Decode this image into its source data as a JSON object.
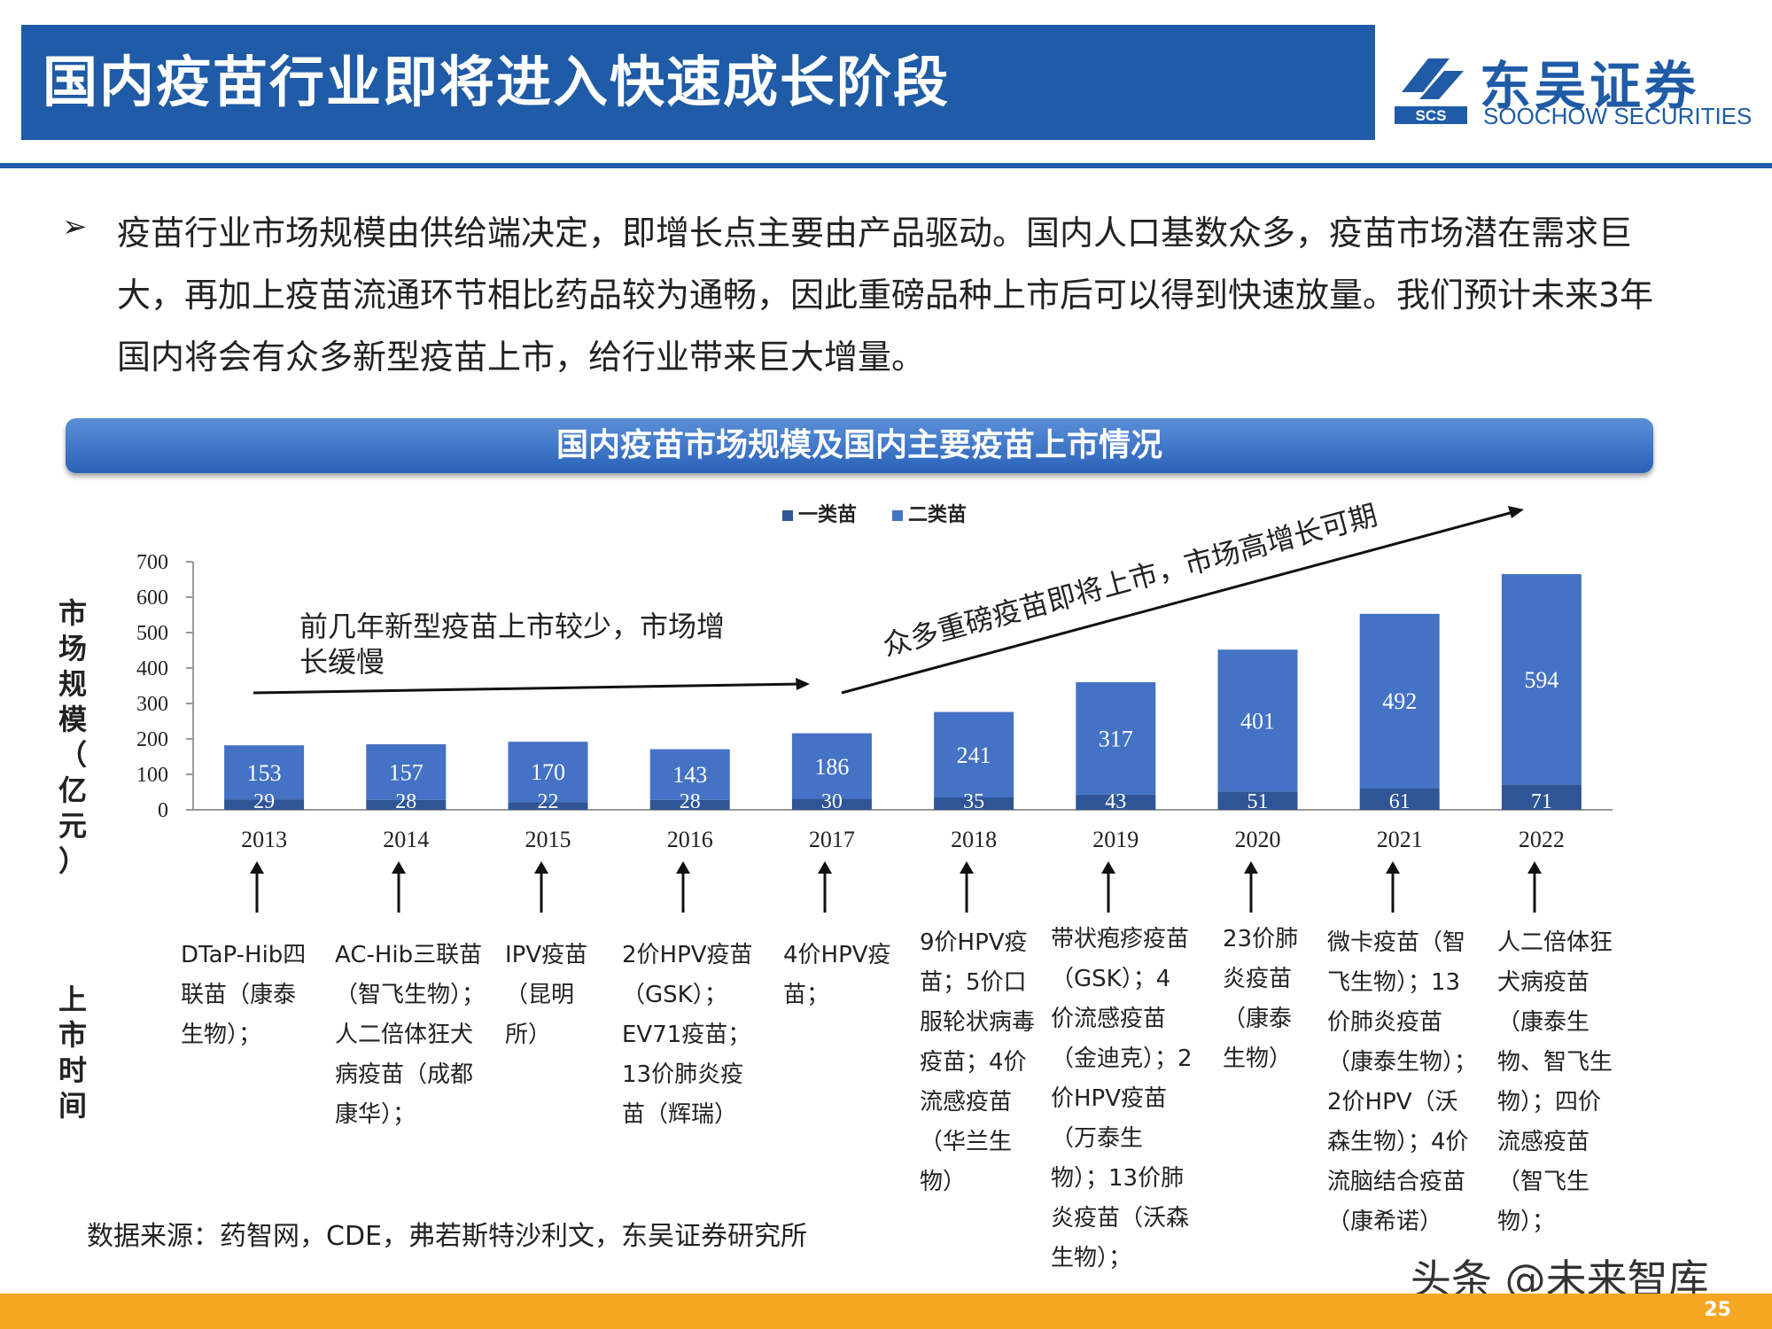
{
  "header": {
    "title": "国内疫苗行业即将进入快速成长阶段",
    "logo_cn": "东吴证券",
    "logo_en": "SOOCHOW SECURITIES",
    "logo_mark": "SCS"
  },
  "bullet": {
    "marker": "➢",
    "text": "疫苗行业市场规模由供给端决定，即增长点主要由产品驱动。国内人口基数众多，疫苗市场潜在需求巨大，再加上疫苗流通环节相比药品较为通畅，因此重磅品种上市后可以得到快速放量。我们预计未来3年国内将会有众多新型疫苗上市，给行业带来巨大增量。"
  },
  "section_title": "国内疫苗市场规模及国内主要疫苗上市情况",
  "chart_data": {
    "type": "bar",
    "stacked": true,
    "categories": [
      "2013",
      "2014",
      "2015",
      "2016",
      "2017",
      "2018",
      "2019",
      "2020",
      "2021",
      "2022"
    ],
    "series": [
      {
        "name": "一类苗",
        "values": [
          29,
          28,
          22,
          28,
          30,
          35,
          43,
          51,
          61,
          71
        ]
      },
      {
        "name": "二类苗",
        "values": [
          153,
          157,
          170,
          143,
          186,
          241,
          317,
          401,
          492,
          594
        ]
      }
    ],
    "ylabel": "市场规模（亿元）",
    "ylim": [
      0,
      700
    ],
    "yticks": [
      0,
      100,
      200,
      300,
      400,
      500,
      600,
      700
    ],
    "legend_position": "top-center",
    "annotations": [
      {
        "text": "前几年新型疫苗上市较少，市场增长缓慢"
      },
      {
        "text": "众多重磅疫苗即将上市，市场高增长可期"
      }
    ],
    "colors": {
      "series1": "#2f5597",
      "series2": "#4472c4",
      "axis": "#999999",
      "arrow": "#111111"
    }
  },
  "timeline": {
    "label": "上市时间",
    "events": [
      "DTaP-Hib四联苗（康泰生物）；",
      "AC-Hib三联苗（智飞生物）；人二倍体狂犬病疫苗（成都康华）；",
      "IPV疫苗（昆明所）",
      "2价HPV疫苗（GSK）；EV71疫苗；13价肺炎疫苗（辉瑞）",
      "4价HPV疫苗；",
      "9价HPV疫苗；5价口服轮状病毒疫苗；4价流感疫苗（华兰生物）",
      "带状疱疹疫苗（GSK）；4价流感疫苗（金迪克）；2价HPV疫苗（万泰生物）；13价肺炎疫苗（沃森生物）；",
      "23价肺炎疫苗（康泰生物）",
      "微卡疫苗（智飞生物）；13价肺炎疫苗（康泰生物）；2价HPV（沃森生物）；4价流脑结合疫苗（康希诺）",
      "人二倍体狂犬病疫苗（康泰生物、智飞生物）；四价流感疫苗（智飞生物）；"
    ]
  },
  "source": "数据来源：药智网，CDE，弗若斯特沙利文，东吴证券研究所",
  "watermark": "头条 @未来智库",
  "page_number": "25"
}
